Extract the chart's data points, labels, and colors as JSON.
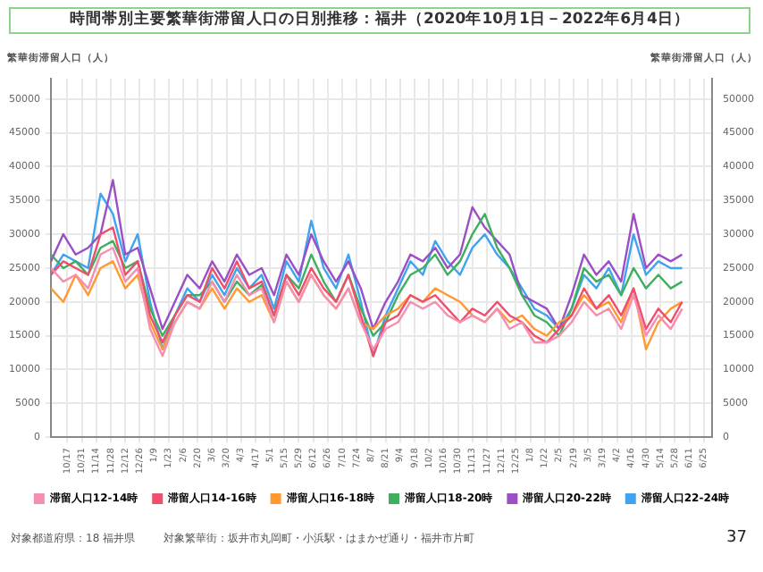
{
  "chart_data": {
    "type": "line",
    "title": "時間帯別主要繁華街滞留人口の日別推移：福井（2020年10月1日－2022年6月4日）",
    "ylabel": "繁華街滞留人口（人）",
    "y2label": "繁華街滞留人口（人）",
    "x": [
      "2020-10-01",
      "2020-10-13",
      "2020-10-25",
      "2020-11-06",
      "2020-11-18",
      "2020-11-30",
      "2020-12-12",
      "2020-12-24",
      "2021-01-05",
      "2021-01-17",
      "2021-01-29",
      "2021-02-10",
      "2021-02-22",
      "2021-03-06",
      "2021-03-18",
      "2021-03-30",
      "2021-04-11",
      "2021-04-23",
      "2021-05-05",
      "2021-05-17",
      "2021-05-29",
      "2021-06-10",
      "2021-06-22",
      "2021-07-04",
      "2021-07-16",
      "2021-07-28",
      "2021-08-09",
      "2021-08-21",
      "2021-09-02",
      "2021-09-14",
      "2021-09-26",
      "2021-10-08",
      "2021-10-20",
      "2021-11-01",
      "2021-11-13",
      "2021-11-25",
      "2021-12-07",
      "2021-12-19",
      "2021-12-31",
      "2022-01-12",
      "2022-01-24",
      "2022-02-05",
      "2022-02-17",
      "2022-03-01",
      "2022-03-13",
      "2022-03-25",
      "2022-04-06",
      "2022-04-18",
      "2022-04-30",
      "2022-05-12",
      "2022-05-24",
      "2022-06-04"
    ],
    "series": [
      {
        "name": "滞留人口12-14時",
        "color": "#f58fb0",
        "values": [
          25000,
          23000,
          24000,
          22000,
          27000,
          28000,
          23000,
          25000,
          16000,
          12000,
          17000,
          20000,
          19000,
          23000,
          20000,
          24000,
          21000,
          22000,
          17000,
          23000,
          20000,
          24000,
          21000,
          19000,
          22000,
          17000,
          13000,
          16000,
          17000,
          20000,
          19000,
          20000,
          18000,
          17000,
          18000,
          17000,
          19000,
          16000,
          17000,
          14000,
          14000,
          15000,
          17000,
          20000,
          18000,
          19000,
          16000,
          21000,
          15000,
          18000,
          16000,
          19000
        ]
      },
      {
        "name": "滞留人口14-16時",
        "color": "#ef4f6c",
        "values": [
          24000,
          26000,
          25000,
          24000,
          30000,
          31000,
          24000,
          26000,
          18000,
          14000,
          18000,
          21000,
          20000,
          25000,
          22000,
          26000,
          22000,
          23000,
          18000,
          24000,
          21000,
          25000,
          22000,
          20000,
          24000,
          18000,
          12000,
          17000,
          18000,
          21000,
          20000,
          21000,
          19000,
          17000,
          19000,
          18000,
          20000,
          18000,
          17000,
          15000,
          14000,
          16000,
          18000,
          22000,
          19000,
          21000,
          18000,
          22000,
          16000,
          19000,
          17000,
          20000
        ]
      },
      {
        "name": "滞留人口16-18時",
        "color": "#ff9a33",
        "values": [
          22000,
          20000,
          24000,
          21000,
          25000,
          26000,
          22000,
          24000,
          17000,
          13000,
          17000,
          20000,
          19000,
          22000,
          19000,
          22000,
          20000,
          21000,
          17000,
          23000,
          20000,
          24000,
          21000,
          19000,
          22000,
          17000,
          16000,
          18000,
          19000,
          21000,
          20000,
          22000,
          21000,
          20000,
          18000,
          17000,
          19000,
          17000,
          18000,
          16000,
          15000,
          17000,
          18000,
          21000,
          19000,
          20000,
          17000,
          22000,
          13000,
          17000,
          19000,
          20000
        ]
      },
      {
        "name": "滞留人口18-20時",
        "color": "#3fae5f",
        "values": [
          27000,
          25000,
          26000,
          24000,
          28000,
          29000,
          25000,
          26000,
          19000,
          15000,
          18000,
          21000,
          21000,
          23000,
          20000,
          23000,
          21000,
          22500,
          18000,
          24000,
          22000,
          27000,
          23000,
          20000,
          24000,
          19000,
          15000,
          17000,
          21000,
          24000,
          25000,
          27000,
          24000,
          26000,
          30000,
          33000,
          28000,
          25000,
          21000,
          18000,
          17000,
          15000,
          19000,
          25000,
          23000,
          24000,
          21000,
          25000,
          22000,
          24000,
          22000,
          23000
        ]
      },
      {
        "name": "滞留人口20-22時",
        "color": "#9b4fc4",
        "values": [
          26000,
          30000,
          27000,
          28000,
          30000,
          38000,
          27000,
          28000,
          22000,
          16000,
          20000,
          24000,
          22000,
          26000,
          23000,
          27000,
          24000,
          25000,
          21000,
          27000,
          24000,
          30000,
          26000,
          23000,
          26000,
          22000,
          16000,
          20000,
          23000,
          27000,
          26000,
          28000,
          25000,
          27000,
          34000,
          31000,
          29000,
          27000,
          21000,
          20000,
          19000,
          16000,
          21000,
          27000,
          24000,
          26000,
          23000,
          33000,
          25000,
          27000,
          26000,
          27000
        ]
      },
      {
        "name": "滞留人口22-24時",
        "color": "#3fa3ef",
        "values": [
          24000,
          27000,
          26000,
          25000,
          36000,
          33000,
          26000,
          30000,
          20000,
          13000,
          18000,
          22000,
          20000,
          24000,
          21000,
          25000,
          22000,
          24000,
          19000,
          26000,
          23000,
          32000,
          25000,
          22000,
          27000,
          20000,
          12000,
          18000,
          22000,
          26000,
          24000,
          29000,
          26000,
          24000,
          28000,
          30000,
          27000,
          25000,
          22000,
          19000,
          18000,
          16000,
          19000,
          24000,
          22000,
          25000,
          21000,
          30000,
          24000,
          26000,
          25000,
          25000
        ]
      }
    ],
    "xlim": [
      "2020-10-01",
      "2022-07-03"
    ],
    "xticks": [
      {
        "value": "2020-10-17",
        "label": "10/17"
      },
      {
        "value": "2020-10-31",
        "label": "10/31"
      },
      {
        "value": "2020-11-14",
        "label": "11/14"
      },
      {
        "value": "2020-11-28",
        "label": "11/28"
      },
      {
        "value": "2020-12-12",
        "label": "12/12"
      },
      {
        "value": "2020-12-26",
        "label": "12/26"
      },
      {
        "value": "2021-01-09",
        "label": "1/9"
      },
      {
        "value": "2021-01-23",
        "label": "1/23"
      },
      {
        "value": "2021-02-06",
        "label": "2/6"
      },
      {
        "value": "2021-02-20",
        "label": "2/20"
      },
      {
        "value": "2021-03-06",
        "label": "3/6"
      },
      {
        "value": "2021-03-20",
        "label": "3/20"
      },
      {
        "value": "2021-04-03",
        "label": "4/3"
      },
      {
        "value": "2021-04-17",
        "label": "4/17"
      },
      {
        "value": "2021-05-01",
        "label": "5/1"
      },
      {
        "value": "2021-05-15",
        "label": "5/15"
      },
      {
        "value": "2021-05-29",
        "label": "5/29"
      },
      {
        "value": "2021-06-12",
        "label": "6/12"
      },
      {
        "value": "2021-06-26",
        "label": "6/26"
      },
      {
        "value": "2021-07-10",
        "label": "7/10"
      },
      {
        "value": "2021-07-24",
        "label": "7/24"
      },
      {
        "value": "2021-08-07",
        "label": "8/7"
      },
      {
        "value": "2021-08-21",
        "label": "8/21"
      },
      {
        "value": "2021-09-04",
        "label": "9/4"
      },
      {
        "value": "2021-09-18",
        "label": "9/18"
      },
      {
        "value": "2021-10-02",
        "label": "10/2"
      },
      {
        "value": "2021-10-16",
        "label": "10/16"
      },
      {
        "value": "2021-10-30",
        "label": "10/30"
      },
      {
        "value": "2021-11-13",
        "label": "11/13"
      },
      {
        "value": "2021-11-27",
        "label": "11/27"
      },
      {
        "value": "2021-12-11",
        "label": "12/11"
      },
      {
        "value": "2021-12-25",
        "label": "12/25"
      },
      {
        "value": "2022-01-08",
        "label": "1/8"
      },
      {
        "value": "2022-01-22",
        "label": "1/22"
      },
      {
        "value": "2022-02-05",
        "label": "2/5"
      },
      {
        "value": "2022-02-19",
        "label": "2/19"
      },
      {
        "value": "2022-03-05",
        "label": "3/5"
      },
      {
        "value": "2022-03-19",
        "label": "3/19"
      },
      {
        "value": "2022-04-02",
        "label": "4/2"
      },
      {
        "value": "2022-04-16",
        "label": "4/16"
      },
      {
        "value": "2022-04-30",
        "label": "4/30"
      },
      {
        "value": "2022-05-14",
        "label": "5/14"
      },
      {
        "value": "2022-05-28",
        "label": "5/28"
      },
      {
        "value": "2022-06-11",
        "label": "6/11"
      },
      {
        "value": "2022-06-25",
        "label": "6/25"
      }
    ],
    "ylim": [
      0,
      53000
    ],
    "yticks": [
      0,
      5000,
      10000,
      15000,
      20000,
      25000,
      30000,
      35000,
      40000,
      45000,
      50000
    ],
    "y2lim": [
      0,
      53000
    ],
    "y2ticks": [
      0,
      5000,
      10000,
      15000,
      20000,
      25000,
      30000,
      35000,
      40000,
      45000,
      50000
    ],
    "grid": true,
    "legend": "bottom",
    "annotations": [
      "対象都道府県：18 福井県",
      "対象繁華街：坂井市丸岡町・小浜駅・はまかぜ通り・福井市片町",
      "37"
    ]
  }
}
